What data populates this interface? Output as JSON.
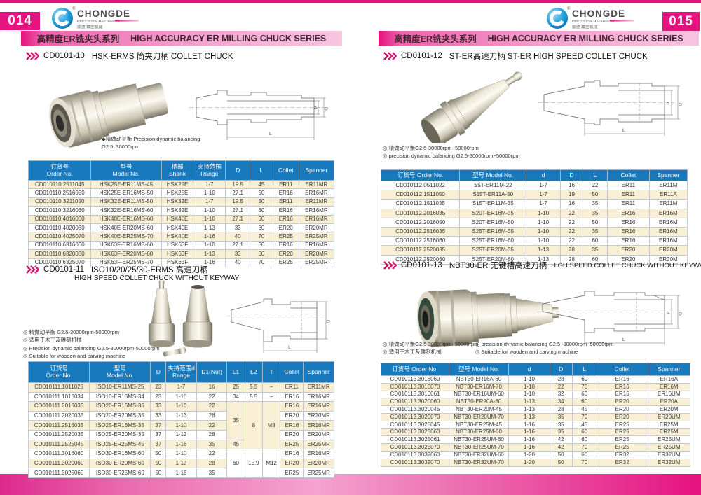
{
  "brand": {
    "name": "CHONGDE",
    "tagline": "PRECISION MACHINERY",
    "cn": "崇德 精密机械",
    "registered": "®"
  },
  "banner": {
    "cn": "高精度ER铣夹头系列",
    "en": "HIGH ACCURACY ER MILLING CHUCK SERIES"
  },
  "dims": {
    "d": "d",
    "D": "D",
    "L": "L"
  },
  "colors": {
    "accent": "#e5127f",
    "header_blue": "#187abd",
    "row_cream": "#f9efd5"
  },
  "pages": {
    "left": {
      "number": "014",
      "section1": {
        "code": "CD0101-10",
        "title": "HSK-ERMS 筒夹刀柄 COLLET CHUCK",
        "note1": "◆精做动平衡 Precision dynamic balancing",
        "note2": "G2.5  30000rpm",
        "table": {
          "zebra": 0,
          "widths": [
            20.5,
            23,
            10.5,
            10.5,
            8,
            7.5,
            8.5,
            11.5
          ],
          "headers": [
            {
              "cn": "订货号",
              "en": "Order No."
            },
            {
              "cn": "型号",
              "en": "Model No."
            },
            {
              "cn": "柄部",
              "en": "Shank"
            },
            {
              "cn": "夹持范围",
              "en": "Range"
            },
            {
              "t": "D"
            },
            {
              "t": "L"
            },
            {
              "t": "Collet"
            },
            {
              "t": "Spanner"
            }
          ],
          "rows": [
            [
              "CD010110.2511045",
              "HSK25E-ER11MS-45",
              "HSK25E",
              "1-7",
              "19.5",
              "45",
              "ER11",
              "ER11MR"
            ],
            [
              "CD010110.2516050",
              "HSK25E-ER16MS-50",
              "HSK25E",
              "1-10",
              "27.1",
              "50",
              "ER16",
              "ER16MR"
            ],
            [
              "CD010110.3211050",
              "HSK32E-ER11MS-50",
              "HSK32E",
              "1-7",
              "19.5",
              "50",
              "ER11",
              "ER11MR"
            ],
            [
              "CD010110.3216060",
              "HSK32E-ER16MS-60",
              "HSK32E",
              "1-10",
              "27.1",
              "60",
              "ER16",
              "ER16MR"
            ],
            [
              "CD010110.4016060",
              "HSK40E-ER16MS-60",
              "HSK40E",
              "1-10",
              "27.1",
              "60",
              "ER16",
              "ER16MR"
            ],
            [
              "CD010110.4020060",
              "HSK40E-ER20MS-60",
              "HSK40E",
              "1-13",
              "33",
              "60",
              "ER20",
              "ER20MR"
            ],
            [
              "CD010110.4025070",
              "HSK40E-ER25MS-70",
              "HSK40E",
              "1-16",
              "40",
              "70",
              "ER25",
              "ER25MR"
            ],
            [
              "CD010110.6316060",
              "HSK63F-ER16MS-60",
              "HSK63F",
              "1-10",
              "27.1",
              "60",
              "ER16",
              "ER16MR"
            ],
            [
              "CD010110.6320060",
              "HSK63F-ER20MS-60",
              "HSK63F",
              "1-13",
              "33",
              "60",
              "ER20",
              "ER20MR"
            ],
            [
              "CD010110.6325070",
              "HSK63F-ER25MS-70",
              "HSK63F",
              "1-16",
              "40",
              "70",
              "ER25",
              "ER25MR"
            ]
          ]
        }
      },
      "section2": {
        "code": "CD0101-11",
        "title": "ISO10/20/25/30-ERMS 高速刀柄",
        "subtitle": "HIGH SPEED COLLET CHUCK WITHOUT KEYWAY",
        "notes_cn": [
          "◎ 精做动平衡 G2.5-30000rpm-50000rpm",
          "◎ 适用于木工及雕刻机械"
        ],
        "notes_en": [
          "◎ Precision dynamic balancing G2.5-30000rpm-50000rpm",
          "◎ Suitable for wooden and carving machine"
        ],
        "table": {
          "zebra": 0,
          "widths": [
            20,
            20,
            5,
            10,
            10,
            5.8,
            5.8,
            5.8,
            7.6,
            10
          ],
          "headers": [
            {
              "cn": "订货号",
              "en": "Order No."
            },
            {
              "cn": "型号",
              "en": "Model No."
            },
            {
              "t": "D"
            },
            {
              "cn": "夹持范围d",
              "en": "Range"
            },
            {
              "t": "D1(Nut)"
            },
            {
              "t": "L1"
            },
            {
              "t": "L2"
            },
            {
              "t": "T"
            },
            {
              "t": "Collet"
            },
            {
              "t": "Spanner"
            }
          ],
          "rows": [
            [
              "CD010111.1011025",
              "ISO10-ER11MS-25",
              "23",
              "1-7",
              "16",
              "25",
              "5.5",
              "–",
              "ER11",
              "ER11MR"
            ],
            [
              "CD010111.1016034",
              "ISO10-ER16MS-34",
              "23",
              "1-10",
              "22",
              "34",
              "5.5",
              "–",
              "ER16",
              "ER16MR"
            ],
            [
              "CD010111.2016035",
              "ISO20-ER16MS-35",
              "33",
              "1-10",
              "22",
              {
                "t": "35",
                "rs": 4
              },
              {
                "t": "8",
                "rs": 5
              },
              {
                "t": "M8",
                "rs": 5
              },
              "ER16",
              "ER16MR"
            ],
            [
              "CD010111.2020035",
              "ISO20-ER20MS-35",
              "33",
              "1-13",
              "28",
              "ER20",
              "ER20MR"
            ],
            [
              "CD010111.2516035",
              "ISO25-ER16MS-35",
              "37",
              "1-10",
              "22",
              "ER16",
              "ER16MR"
            ],
            [
              "CD010111.2520035",
              "ISO25-ER20MS-35",
              "37",
              "1-13",
              "28",
              "ER20",
              "ER20MR"
            ],
            [
              "CD010111.2525045",
              "ISO25-ER25MS-45",
              "37",
              "1-16",
              "35",
              {
                "t": "45"
              },
              "ER25",
              "ER25MR"
            ],
            [
              "CD010111.3016060",
              "ISO30-ER16MS-60",
              "50",
              "1-10",
              "22",
              {
                "t": "60",
                "rs": 3
              },
              {
                "t": "15.9",
                "rs": 3
              },
              {
                "t": "M12",
                "rs": 3
              },
              "ER16",
              "ER16MR"
            ],
            [
              "CD010111.3020060",
              "ISO30-ER20MS-60",
              "50",
              "1-13",
              "28",
              "ER20",
              "ER20MR"
            ],
            [
              "CD010111.3025060",
              "ISO30-ER25MS-60",
              "50",
              "1-16",
              "35",
              "ER25",
              "ER25MR"
            ]
          ]
        }
      }
    },
    "right": {
      "number": "015",
      "section1": {
        "code": "CD0101-12",
        "title": "ST-ER高速刀柄 ST-ER HIGH SPEED COLLET CHUCK",
        "notes": [
          "◎ 精做动平衡G2.5-30000rpm~50000rpm",
          "◎ precision dynamic balancing G2.5-30000rpm~50000rpm"
        ],
        "table": {
          "zebra": 1,
          "widths": [
            25.7,
            21.7,
            11.2,
            7.3,
            8,
            13.7,
            12.4
          ],
          "headers": [
            {
              "t": "订货号 Order No."
            },
            {
              "t": "型号 Model No."
            },
            {
              "t": "d"
            },
            {
              "t": "D"
            },
            {
              "t": "L"
            },
            {
              "t": "Collet"
            },
            {
              "t": "Spanner"
            }
          ],
          "rows": [
            [
              "CD010112.0511022",
              "S5T-ER11M-22",
              "1-7",
              "16",
              "22",
              "ER11",
              "ER11M"
            ],
            [
              "CD010112.1511050",
              "S15T-ER11A-50",
              "1-7",
              "19",
              "50",
              "ER11",
              "ER11A"
            ],
            [
              "CD010112.1511035",
              "S15T-ER11M-35",
              "1-7",
              "16",
              "35",
              "ER11",
              "ER11M"
            ],
            [
              "CD010112.2016035",
              "S20T-ER16M-35",
              "1-10",
              "22",
              "35",
              "ER16",
              "ER16M"
            ],
            [
              "CD010112.2016050",
              "S20T-ER16M-50",
              "1-10",
              "22",
              "50",
              "ER16",
              "ER16M"
            ],
            [
              "CD010112.2516035",
              "S25T-ER16M-35",
              "1-10",
              "22",
              "35",
              "ER16",
              "ER16M"
            ],
            [
              "CD010112.2516060",
              "S25T-ER16M-60",
              "1-10",
              "22",
              "60",
              "ER16",
              "ER16M"
            ],
            [
              "CD010112.2520035",
              "S25T-ER20M-35",
              "1-13",
              "28",
              "35",
              "ER20",
              "ER20M"
            ],
            [
              "CD010112.2520060",
              "S25T-ER20M-60",
              "1-13",
              "28",
              "60",
              "ER20",
              "ER20M"
            ]
          ]
        }
      },
      "section2": {
        "code": "CD0101-13",
        "title": "NBT30-ER 无键槽高速刀柄",
        "title_en": "HIGH SPEED COLLET CHUCK WITHOUT KEYWAY",
        "notes_cn": [
          "◎ 精做动平衡G2.5 30000rpm~50000rpm",
          "◎ 适用于木工及雕刻机械"
        ],
        "notes_en": [
          "◎ precision dynamic balancing G2.5  30000rpm~50000rpm",
          "◎ Suitable for wooden and carving machine"
        ],
        "table": {
          "zebra": 1,
          "widths": [
            22,
            19.3,
            13.3,
            7.2,
            8,
            16.5,
            13.7
          ],
          "headers": [
            {
              "t": "订货号 Order No."
            },
            {
              "t": "型号 Model No."
            },
            {
              "t": "d"
            },
            {
              "t": "D"
            },
            {
              "t": "L"
            },
            {
              "t": "Collet"
            },
            {
              "t": "Spanner"
            }
          ],
          "rows": [
            [
              "CD010113.3016060",
              "NBT30-ER16A-60",
              "1-10",
              "28",
              "60",
              "ER16",
              "ER16A"
            ],
            [
              "CD010113.3016070",
              "NBT30-ER16M-70",
              "1-10",
              "22",
              "70",
              "ER16",
              "ER16M"
            ],
            [
              "CD010113.3016061",
              "NBT30-ER16UM-60",
              "1-10",
              "32",
              "60",
              "ER16",
              "ER16UM"
            ],
            [
              "CD010113.3020060",
              "NBT30-ER20A-60",
              "1-13",
              "34",
              "60",
              "ER20",
              "ER20A"
            ],
            [
              "CD010113.3020045",
              "NBT30-ER20M-45",
              "1-13",
              "28",
              "45",
              "ER20",
              "ER20M"
            ],
            [
              "CD010113.3020070",
              "NBT30-ER20UM-70",
              "1-13",
              "35",
              "70",
              "ER20",
              "ER20UM"
            ],
            [
              "CD010113.3025045",
              "NBT30-ER25M-45",
              "1-16",
              "35",
              "45",
              "ER25",
              "ER25M"
            ],
            [
              "CD010113.3025060",
              "NBT30-ER25M-60",
              "1-16",
              "35",
              "60",
              "ER25",
              "ER25M"
            ],
            [
              "CD010113.3025061",
              "NBT30-ER25UM-60",
              "1-16",
              "42",
              "60",
              "ER25",
              "ER25UM"
            ],
            [
              "CD010113.3025070",
              "NBT30-ER25UM-70",
              "1-16",
              "42",
              "70",
              "ER25",
              "ER25UM"
            ],
            [
              "CD010113.3032060",
              "NBT30-ER32UM-60",
              "1-20",
              "50",
              "60",
              "ER32",
              "ER32UM"
            ],
            [
              "CD010113.3032070",
              "NBT30-ER32UM-70",
              "1-20",
              "50",
              "70",
              "ER32",
              "ER32UM"
            ]
          ]
        }
      }
    }
  }
}
